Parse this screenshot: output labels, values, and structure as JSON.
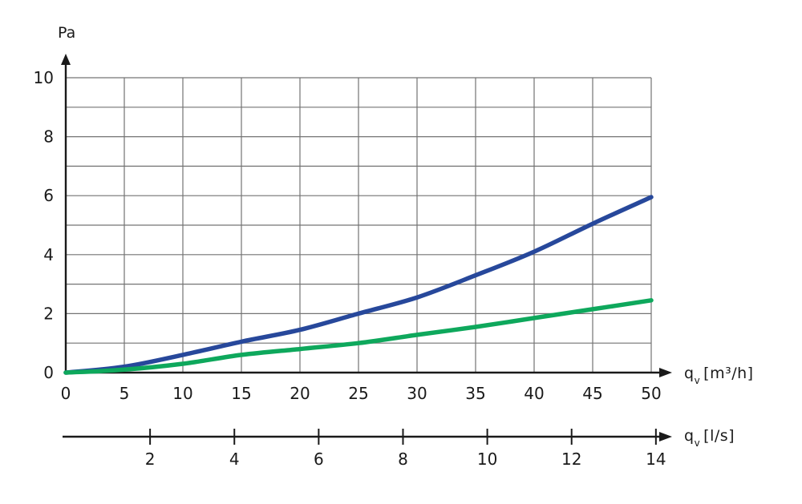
{
  "chart_data": {
    "type": "line",
    "title": "",
    "ylabel": "Pa",
    "ylim": [
      0,
      10
    ],
    "y_grid_step": 1,
    "y_labeled_ticks": [
      0,
      2,
      4,
      6,
      8,
      10
    ],
    "x_primary": {
      "label_base": "q",
      "label_sub": "v",
      "label_unit": "[m³/h]",
      "range": [
        0,
        50
      ],
      "ticks": [
        0,
        5,
        10,
        15,
        20,
        25,
        30,
        35,
        40,
        45,
        50
      ]
    },
    "x_secondary": {
      "label_base": "q",
      "label_sub": "v",
      "label_unit": "[l/s]",
      "ticks": [
        2,
        4,
        6,
        8,
        10,
        12,
        14
      ],
      "to_primary_factor": 3.6
    },
    "grid": true,
    "legend_position": "none",
    "series": [
      {
        "name": "blue-curve",
        "color": "#27489b",
        "x": [
          0,
          5,
          10,
          15,
          20,
          25,
          30,
          35,
          40,
          45,
          50
        ],
        "y": [
          0,
          0.2,
          0.6,
          1.05,
          1.45,
          2.0,
          2.55,
          3.3,
          4.1,
          5.05,
          5.95
        ]
      },
      {
        "name": "green-curve",
        "color": "#0ea85c",
        "x": [
          0,
          5,
          10,
          15,
          20,
          25,
          30,
          35,
          40,
          45,
          50
        ],
        "y": [
          0,
          0.1,
          0.3,
          0.6,
          0.8,
          1.0,
          1.28,
          1.55,
          1.85,
          2.15,
          2.45
        ]
      }
    ],
    "colors": {
      "axis": "#1a1a1a",
      "grid": "#737373",
      "text": "#1a1a1a",
      "background": "#ffffff"
    }
  }
}
